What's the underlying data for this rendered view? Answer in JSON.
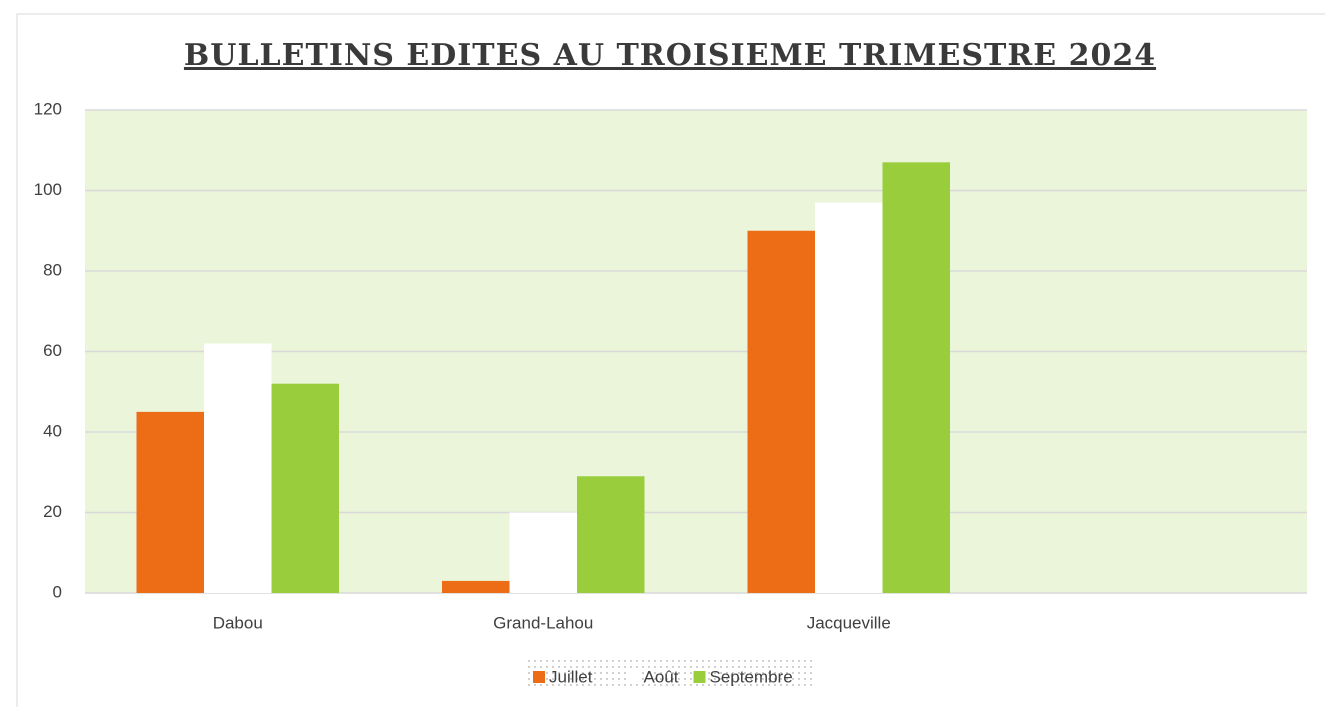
{
  "chart_data": {
    "type": "bar",
    "title": "BULLETINS EDITES AU TROISIEME TRIMESTRE 2024",
    "categories": [
      "Dabou",
      "Grand-Lahou",
      "Jacqueville",
      null
    ],
    "series": [
      {
        "name": "Juillet",
        "color": "#ED6C16",
        "values": [
          45,
          3,
          90,
          null
        ]
      },
      {
        "name": "Août",
        "color": "#FFFFFF",
        "values": [
          62,
          20,
          97,
          null
        ]
      },
      {
        "name": "Septembre",
        "color": "#9ACD3C",
        "values": [
          52,
          29,
          107,
          null
        ]
      }
    ],
    "ylim": [
      0,
      120
    ],
    "yticks": [
      0,
      20,
      40,
      60,
      80,
      100,
      120
    ],
    "grid": true,
    "plot_background": "#EBF5DA",
    "legend": "bottom"
  }
}
